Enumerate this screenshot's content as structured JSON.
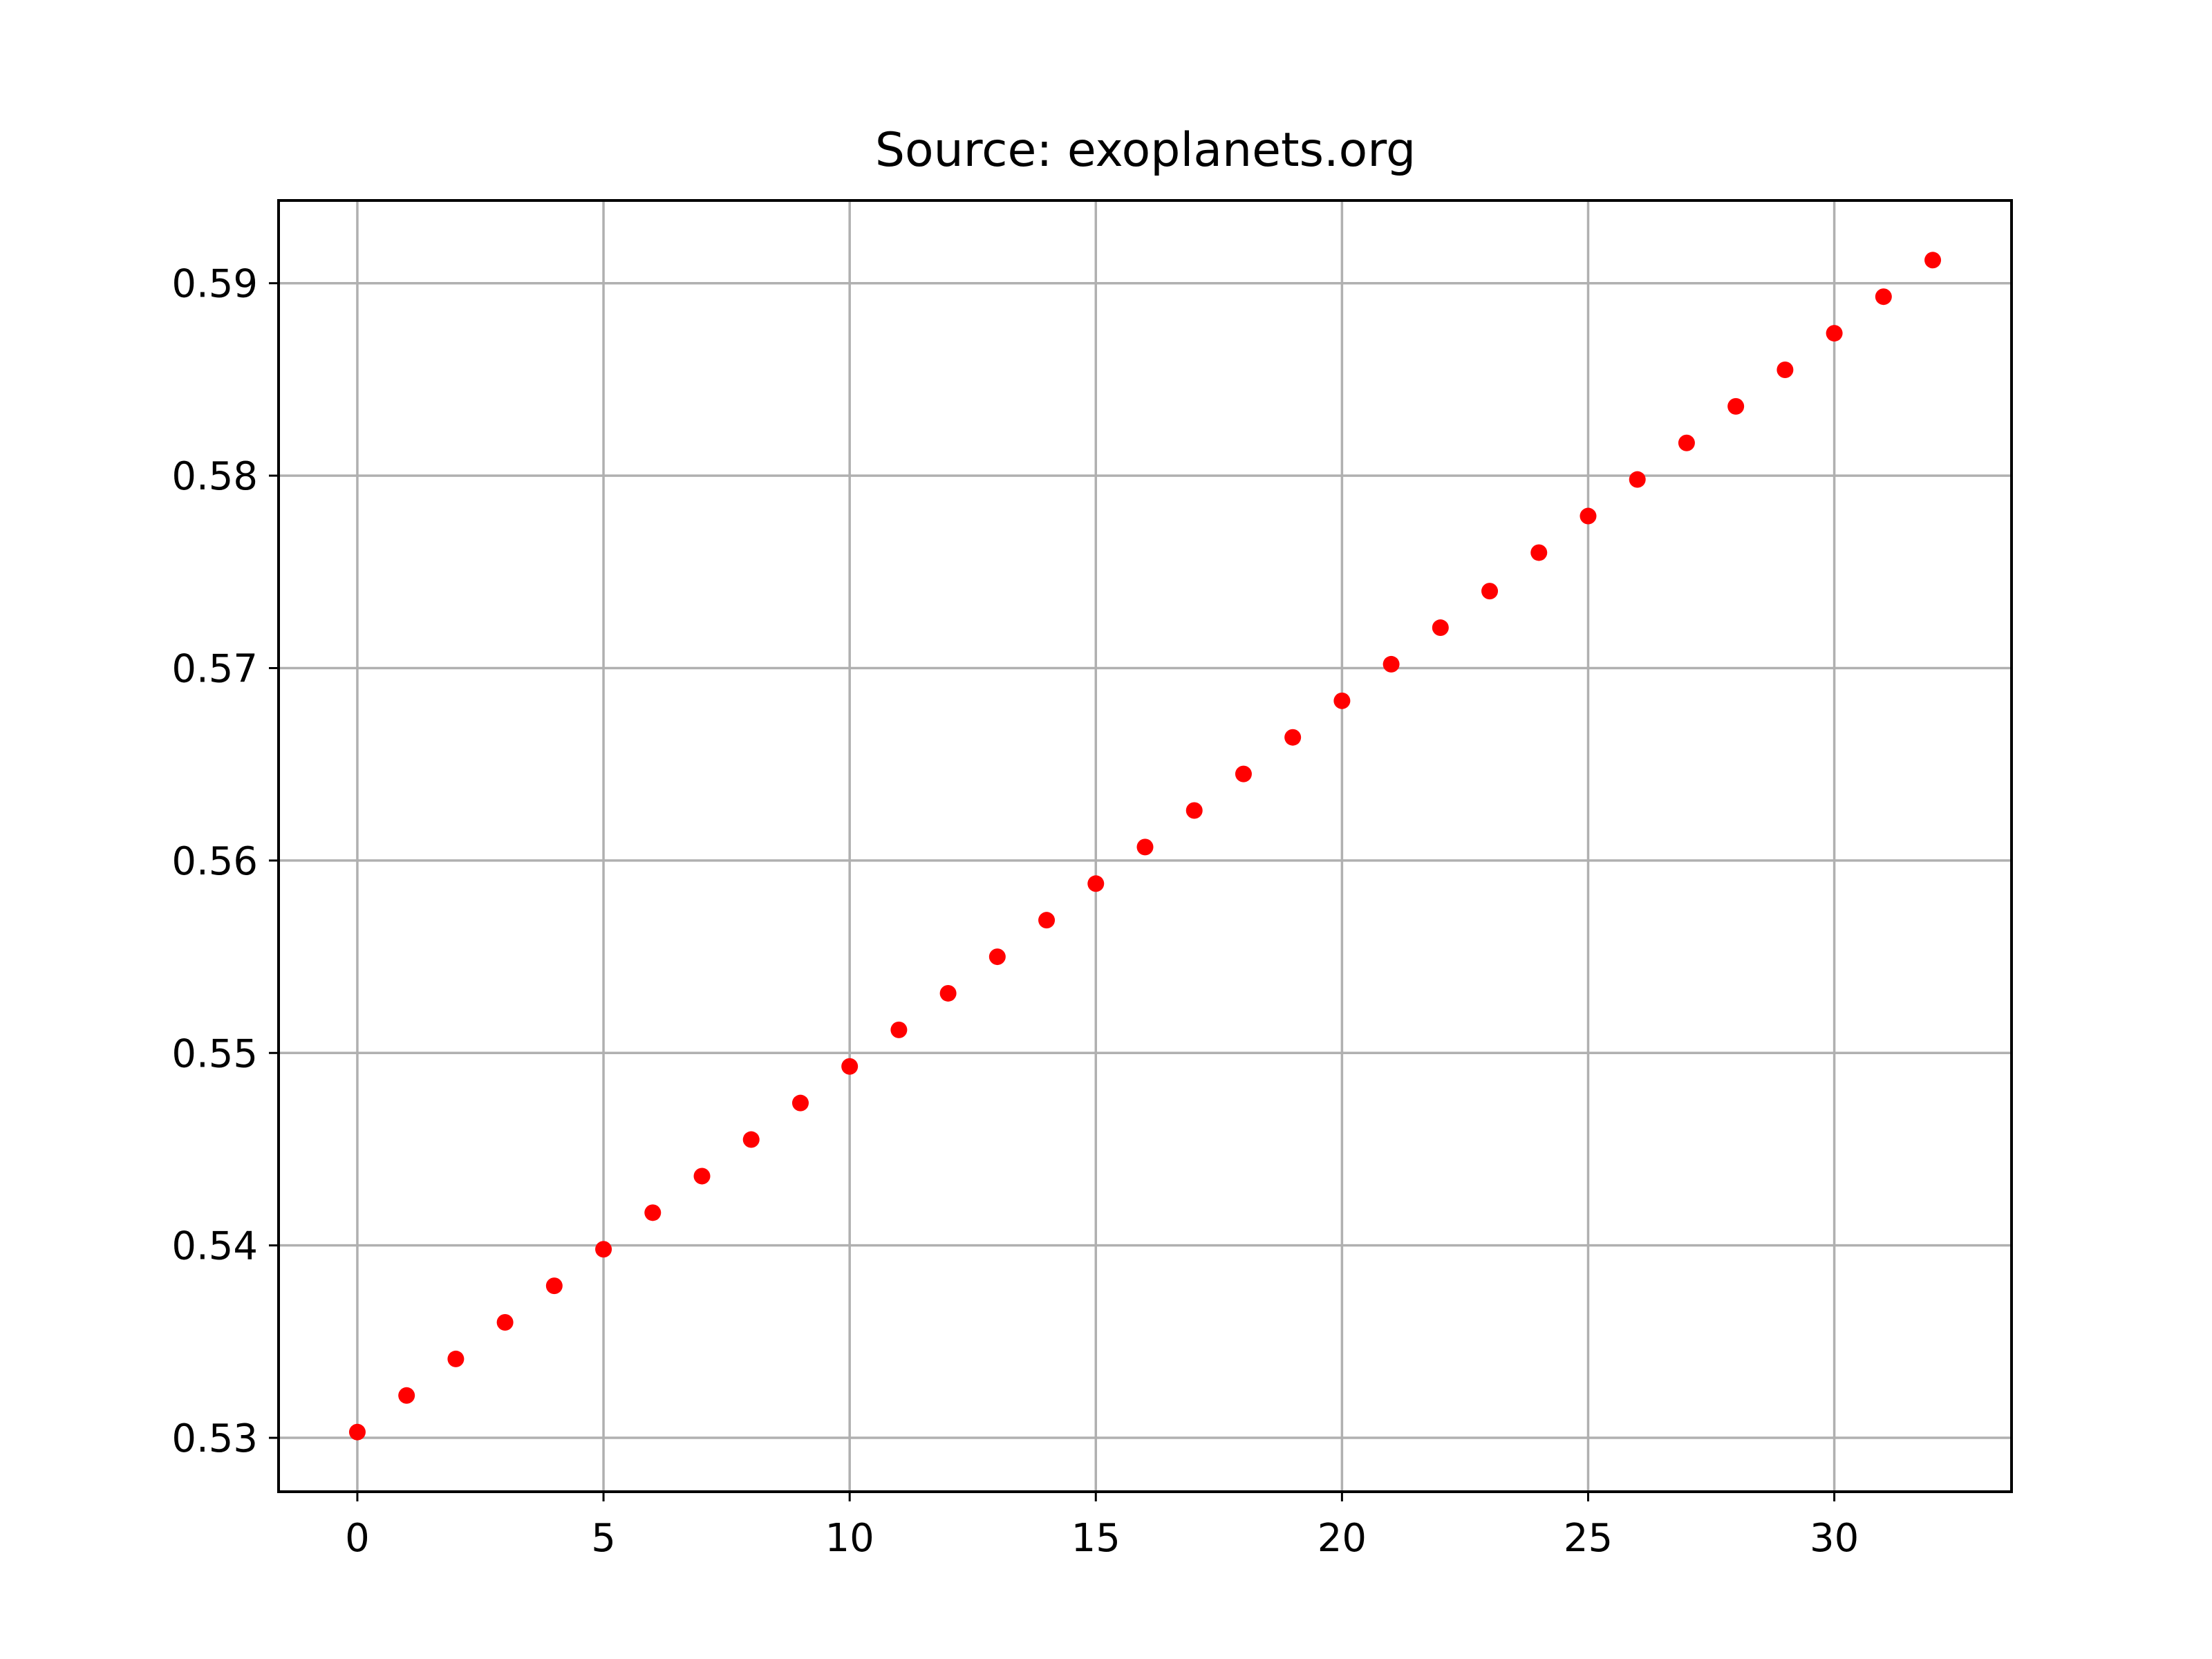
{
  "chart_data": {
    "type": "scatter",
    "title": "Source: exoplanets.org",
    "xlabel": "",
    "ylabel": "",
    "xlim": [
      -1.6,
      33.6
    ],
    "ylim": [
      0.5272,
      0.5943
    ],
    "x_ticks": [
      0,
      5,
      10,
      15,
      20,
      25,
      30
    ],
    "x_tick_labels": [
      "0",
      "5",
      "10",
      "15",
      "20",
      "25",
      "30"
    ],
    "y_ticks": [
      0.53,
      0.54,
      0.55,
      0.56,
      0.57,
      0.58,
      0.59
    ],
    "y_tick_labels": [
      "0.53",
      "0.54",
      "0.55",
      "0.56",
      "0.57",
      "0.58",
      "0.59"
    ],
    "grid": true,
    "marker_color": "#ff0000",
    "grid_color": "#b0b0b0",
    "series": [
      {
        "x": [
          0,
          1,
          2,
          3,
          4,
          5,
          6,
          7,
          8,
          9,
          10,
          11,
          12,
          13,
          14,
          15,
          16,
          17,
          18,
          19,
          20,
          21,
          22,
          23,
          24,
          25,
          26,
          27,
          28,
          29,
          30,
          31,
          32
        ],
        "y": [
          0.5303,
          0.5322,
          0.5341,
          0.536,
          0.5379,
          0.5398,
          0.5417,
          0.5436,
          0.5455,
          0.5474,
          0.5493,
          0.5512,
          0.5531,
          0.555,
          0.5569,
          0.5588,
          0.5607,
          0.5626,
          0.5645,
          0.5664,
          0.5683,
          0.5702,
          0.5721,
          0.574,
          0.576,
          0.5779,
          0.5798,
          0.5817,
          0.5836,
          0.5855,
          0.5874,
          0.5893,
          0.5912
        ]
      }
    ]
  }
}
